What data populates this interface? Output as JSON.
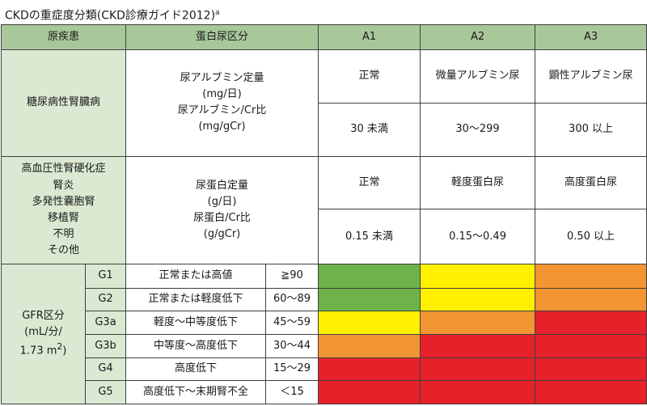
{
  "title": {
    "text": "CKDの重症度分類(CKD診療ガイド2012)",
    "sup": "a"
  },
  "header": {
    "cause": "原疾患",
    "proteinuria": "蛋白尿区分",
    "a1": "A1",
    "a2": "A2",
    "a3": "A3"
  },
  "diabetes": {
    "cause": "糖尿病性腎臓病",
    "measure": [
      "尿アルブミン定量",
      "(mg/日)",
      "尿アルブミン/Cr比",
      "(mg/gCr)"
    ],
    "a1_label": "正常",
    "a2_label": "微量アルブミン尿",
    "a3_label": "顕性アルブミン尿",
    "a1_value": "30 未満",
    "a2_value": "30〜299",
    "a3_value": "300 以上"
  },
  "other": {
    "causes": [
      "高血圧性腎硬化症",
      "腎炎",
      "多発性嚢胞腎",
      "移植腎",
      "不明",
      "その他"
    ],
    "measure": [
      "尿蛋白定量",
      "(g/日)",
      "尿蛋白/Cr比",
      "(g/gCr)"
    ],
    "a1_label": "正常",
    "a2_label": "軽度蛋白尿",
    "a3_label": "高度蛋白尿",
    "a1_value": "0.15 未満",
    "a2_value": "0.15〜0.49",
    "a3_value": "0.50 以上"
  },
  "gfr": {
    "label": [
      "GFR区分",
      "(mL/分/",
      "1.73 m",
      "2",
      ")"
    ],
    "rows": [
      {
        "grade": "G1",
        "desc": "正常または高値",
        "range": "≧90",
        "colors": [
          "green",
          "yellow",
          "orange"
        ]
      },
      {
        "grade": "G2",
        "desc": "正常または軽度低下",
        "range": "60〜89",
        "colors": [
          "green",
          "yellow",
          "orange"
        ]
      },
      {
        "grade": "G3a",
        "desc": "軽度〜中等度低下",
        "range": "45〜59",
        "colors": [
          "yellow",
          "orange",
          "red"
        ]
      },
      {
        "grade": "G3b",
        "desc": "中等度〜高度低下",
        "range": "30〜44",
        "colors": [
          "orange",
          "red",
          "red"
        ]
      },
      {
        "grade": "G4",
        "desc": "高度低下",
        "range": "15〜29",
        "colors": [
          "red",
          "red",
          "red"
        ]
      },
      {
        "grade": "G5",
        "desc": "高度低下〜末期腎不全",
        "range": "＜15",
        "colors": [
          "red",
          "red",
          "red"
        ]
      }
    ]
  },
  "colors": {
    "green": "#6eb24b",
    "yellow": "#fff000",
    "orange": "#f29532",
    "red": "#e6212a",
    "header_bg": "#a9c89a",
    "label_bg": "#dbe9d2"
  }
}
